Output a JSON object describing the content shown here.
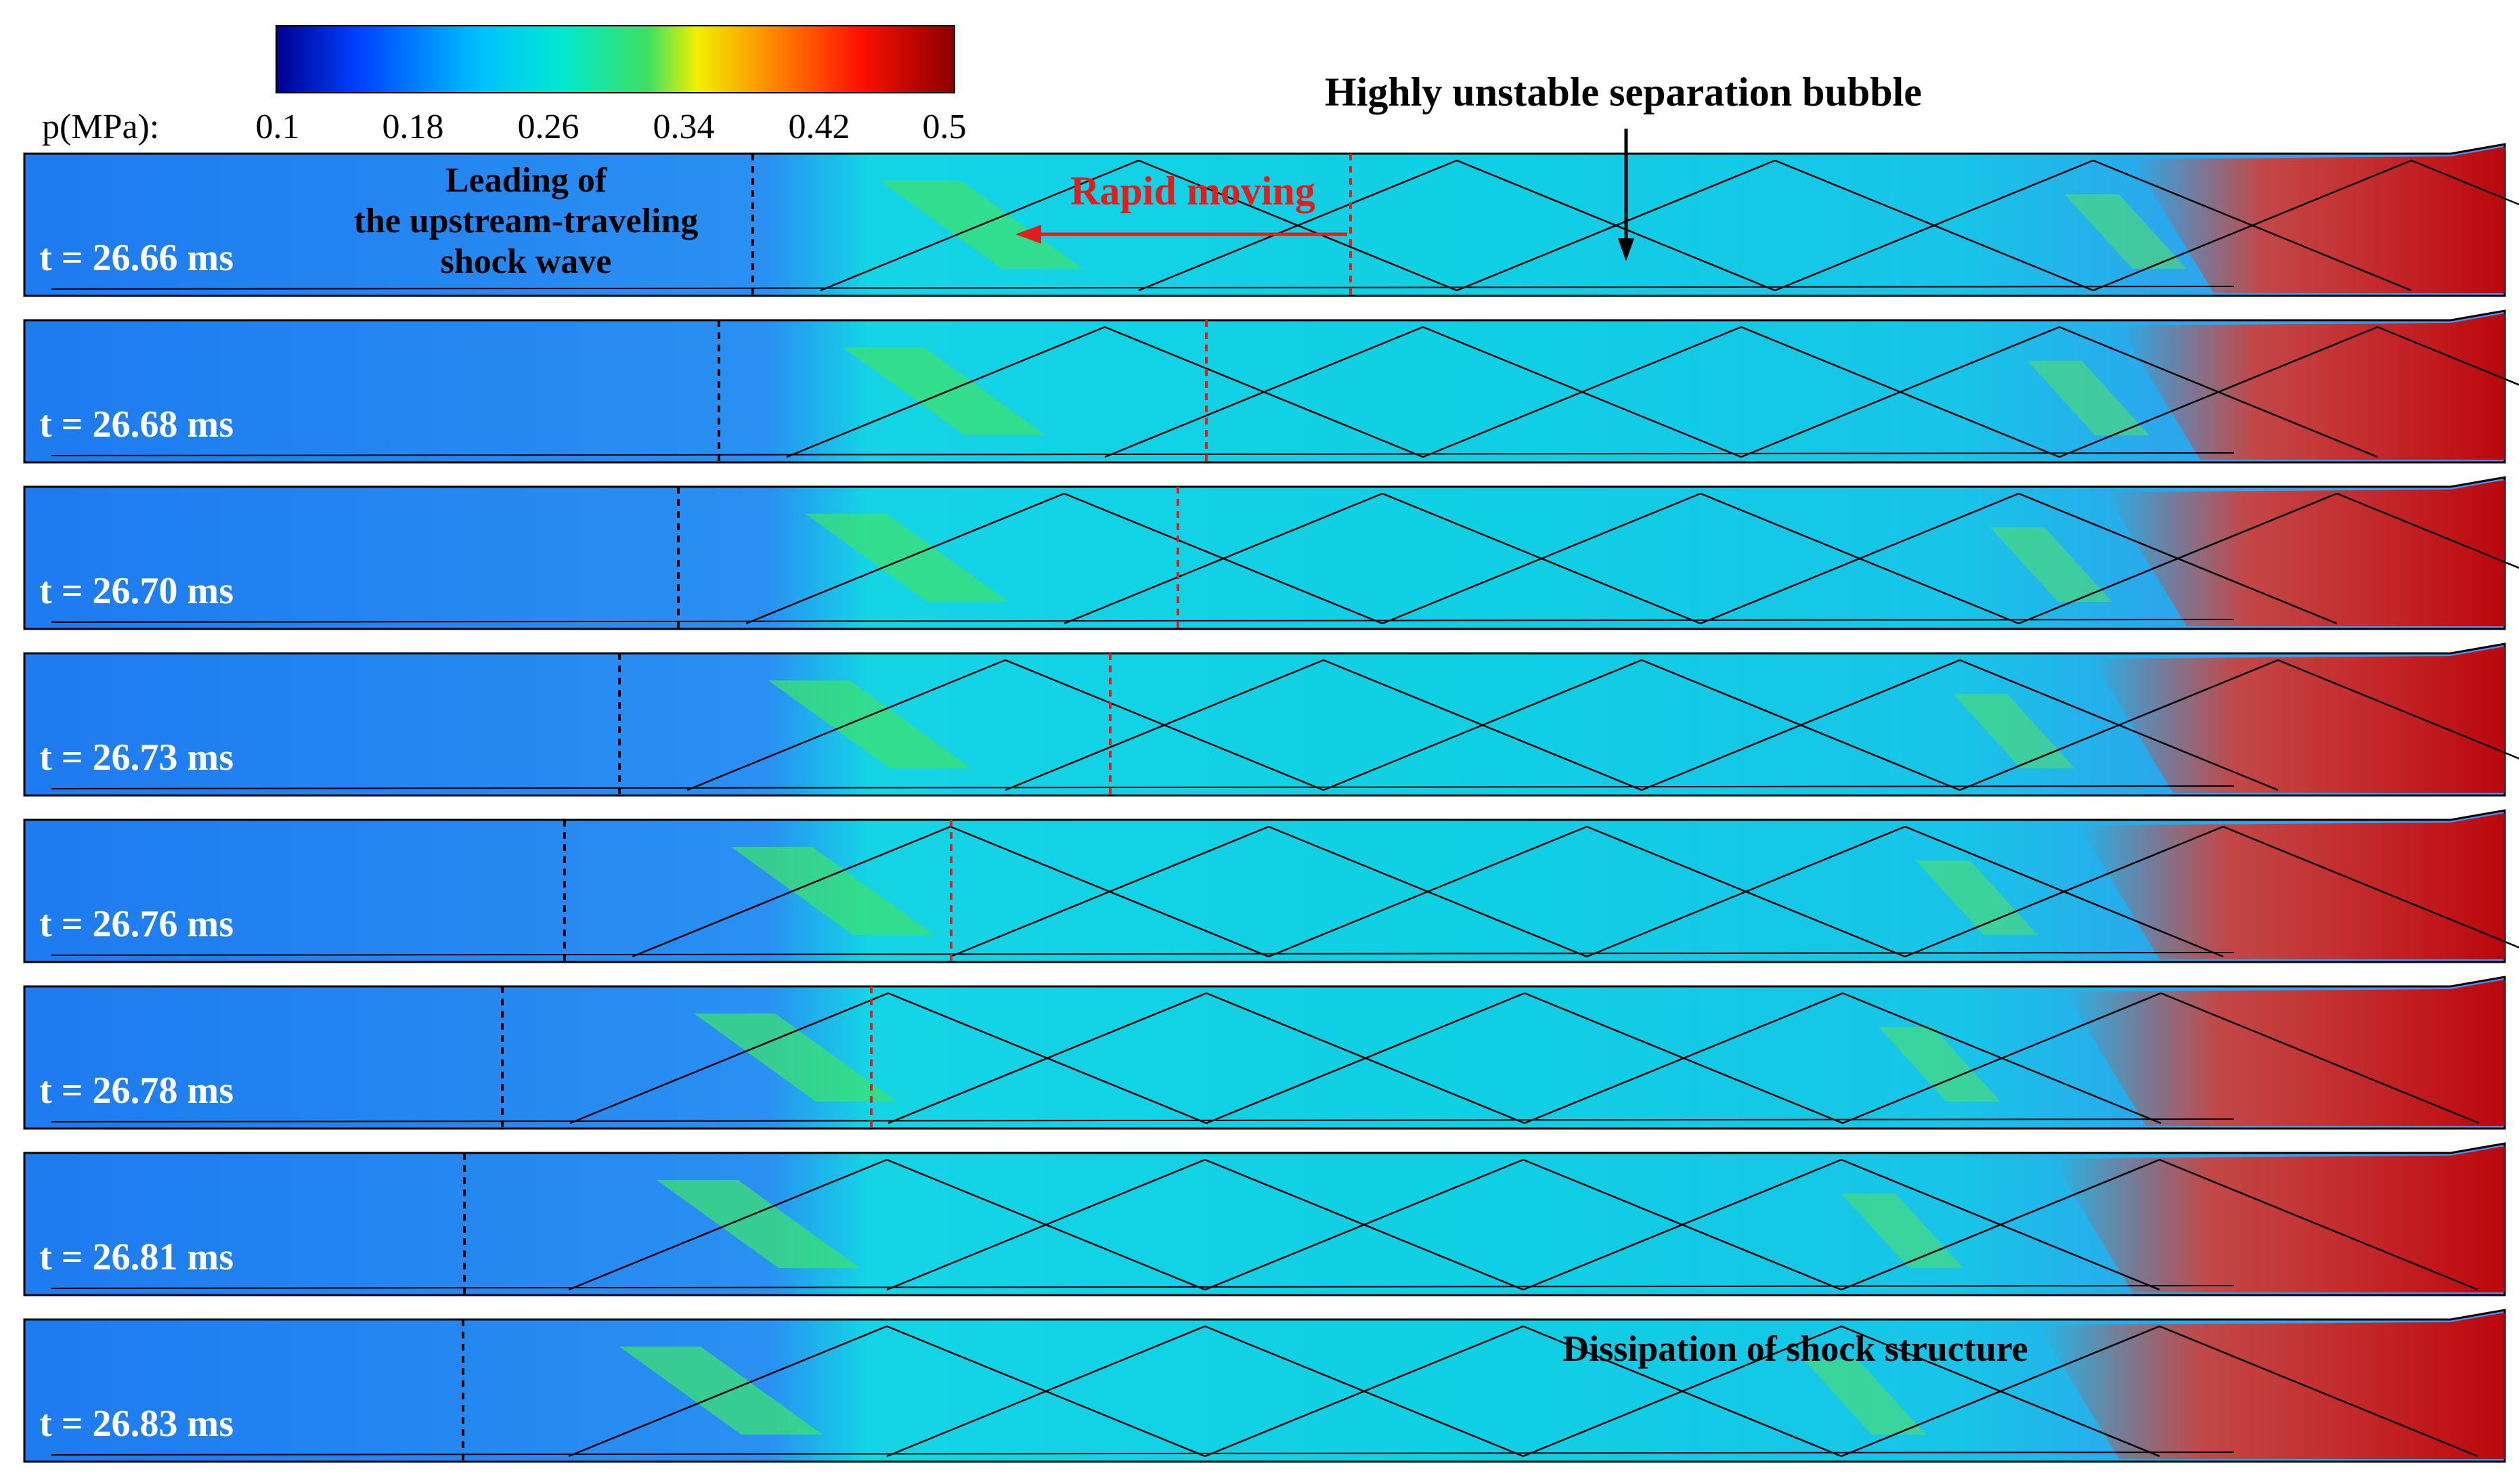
{
  "colorbar": {
    "label": "p(MPa):",
    "ticks": [
      "0.1",
      "0.18",
      "0.26",
      "0.34",
      "0.42",
      "0.5"
    ],
    "colors": [
      "#00008f",
      "#0060ff",
      "#00e0f0",
      "#30e080",
      "#ffff00",
      "#ff8000",
      "#ff0000",
      "#8b0000"
    ]
  },
  "annotations": {
    "bubble": "Highly unstable separation bubble",
    "rapid": "Rapid moving",
    "leading_1": "Leading of",
    "leading_2": "the upstream-traveling",
    "leading_3": "shock wave",
    "dissipation": "Dissipation of shock structure"
  },
  "frames": [
    {
      "label": "t = 26.66 ms"
    },
    {
      "label": "t = 26.68 ms"
    },
    {
      "label": "t = 26.70 ms"
    },
    {
      "label": "t = 26.73 ms"
    },
    {
      "label": "t = 26.76 ms"
    },
    {
      "label": "t = 26.78 ms"
    },
    {
      "label": "t = 26.81 ms"
    },
    {
      "label": "t = 26.83 ms"
    }
  ]
}
